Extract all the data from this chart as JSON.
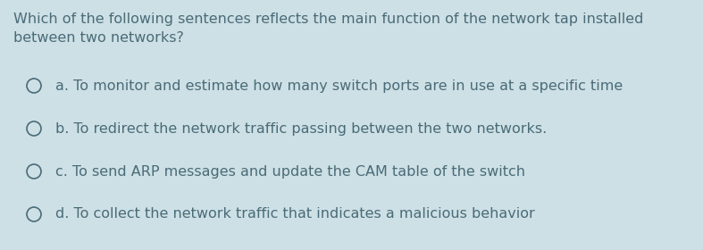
{
  "background_color": "#cde0e5",
  "text_color": "#4a6b78",
  "question_line1": "Which of the following sentences reflects the main function of the network tap installed",
  "question_line2": "between two networks?",
  "options": [
    "a. To monitor and estimate how many switch ports are in use at a specific time",
    "b. To redirect the network traffic passing between the two networks.",
    "c. To send ARP messages and update the CAM table of the switch",
    "d. To collect the network traffic that indicates a malicious behavior"
  ],
  "question_fontsize": 11.5,
  "option_fontsize": 11.5,
  "fig_width": 7.87,
  "fig_height": 2.8,
  "dpi": 100
}
